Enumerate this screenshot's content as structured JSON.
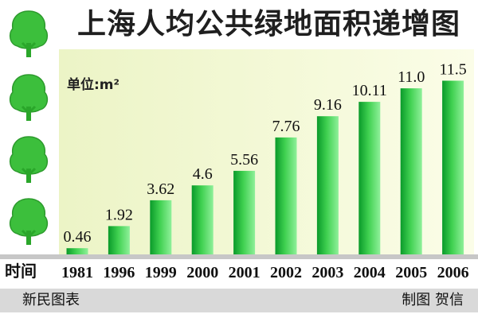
{
  "title": "上海人均公共绿地面积递增图",
  "unit_label": "单位:m²",
  "footer": {
    "source": "新民图表",
    "credit": "制图 贺信"
  },
  "colors": {
    "bar_dark": "#0a9a2a",
    "bar_light": "#7ee88a",
    "tree": "#3cbf3c",
    "tree_trunk": "#2aa62a"
  },
  "chart_data": {
    "type": "bar",
    "title": "上海人均公共绿地面积递增图",
    "xlabel": "时间",
    "ylabel": "",
    "unit": "m²",
    "categories": [
      "1981",
      "1996",
      "1999",
      "2000",
      "2001",
      "2002",
      "2003",
      "2004",
      "2005",
      "2006"
    ],
    "values": [
      0.46,
      1.92,
      3.62,
      4.6,
      5.56,
      7.76,
      9.16,
      10.11,
      11.0,
      11.5
    ],
    "value_labels": [
      "0.46",
      "1.92",
      "3.62",
      "4.6",
      "5.56",
      "7.76",
      "9.16",
      "10.11",
      "11.0",
      "11.5"
    ],
    "ylim": [
      0,
      12
    ],
    "grid": false,
    "legend": "none"
  }
}
